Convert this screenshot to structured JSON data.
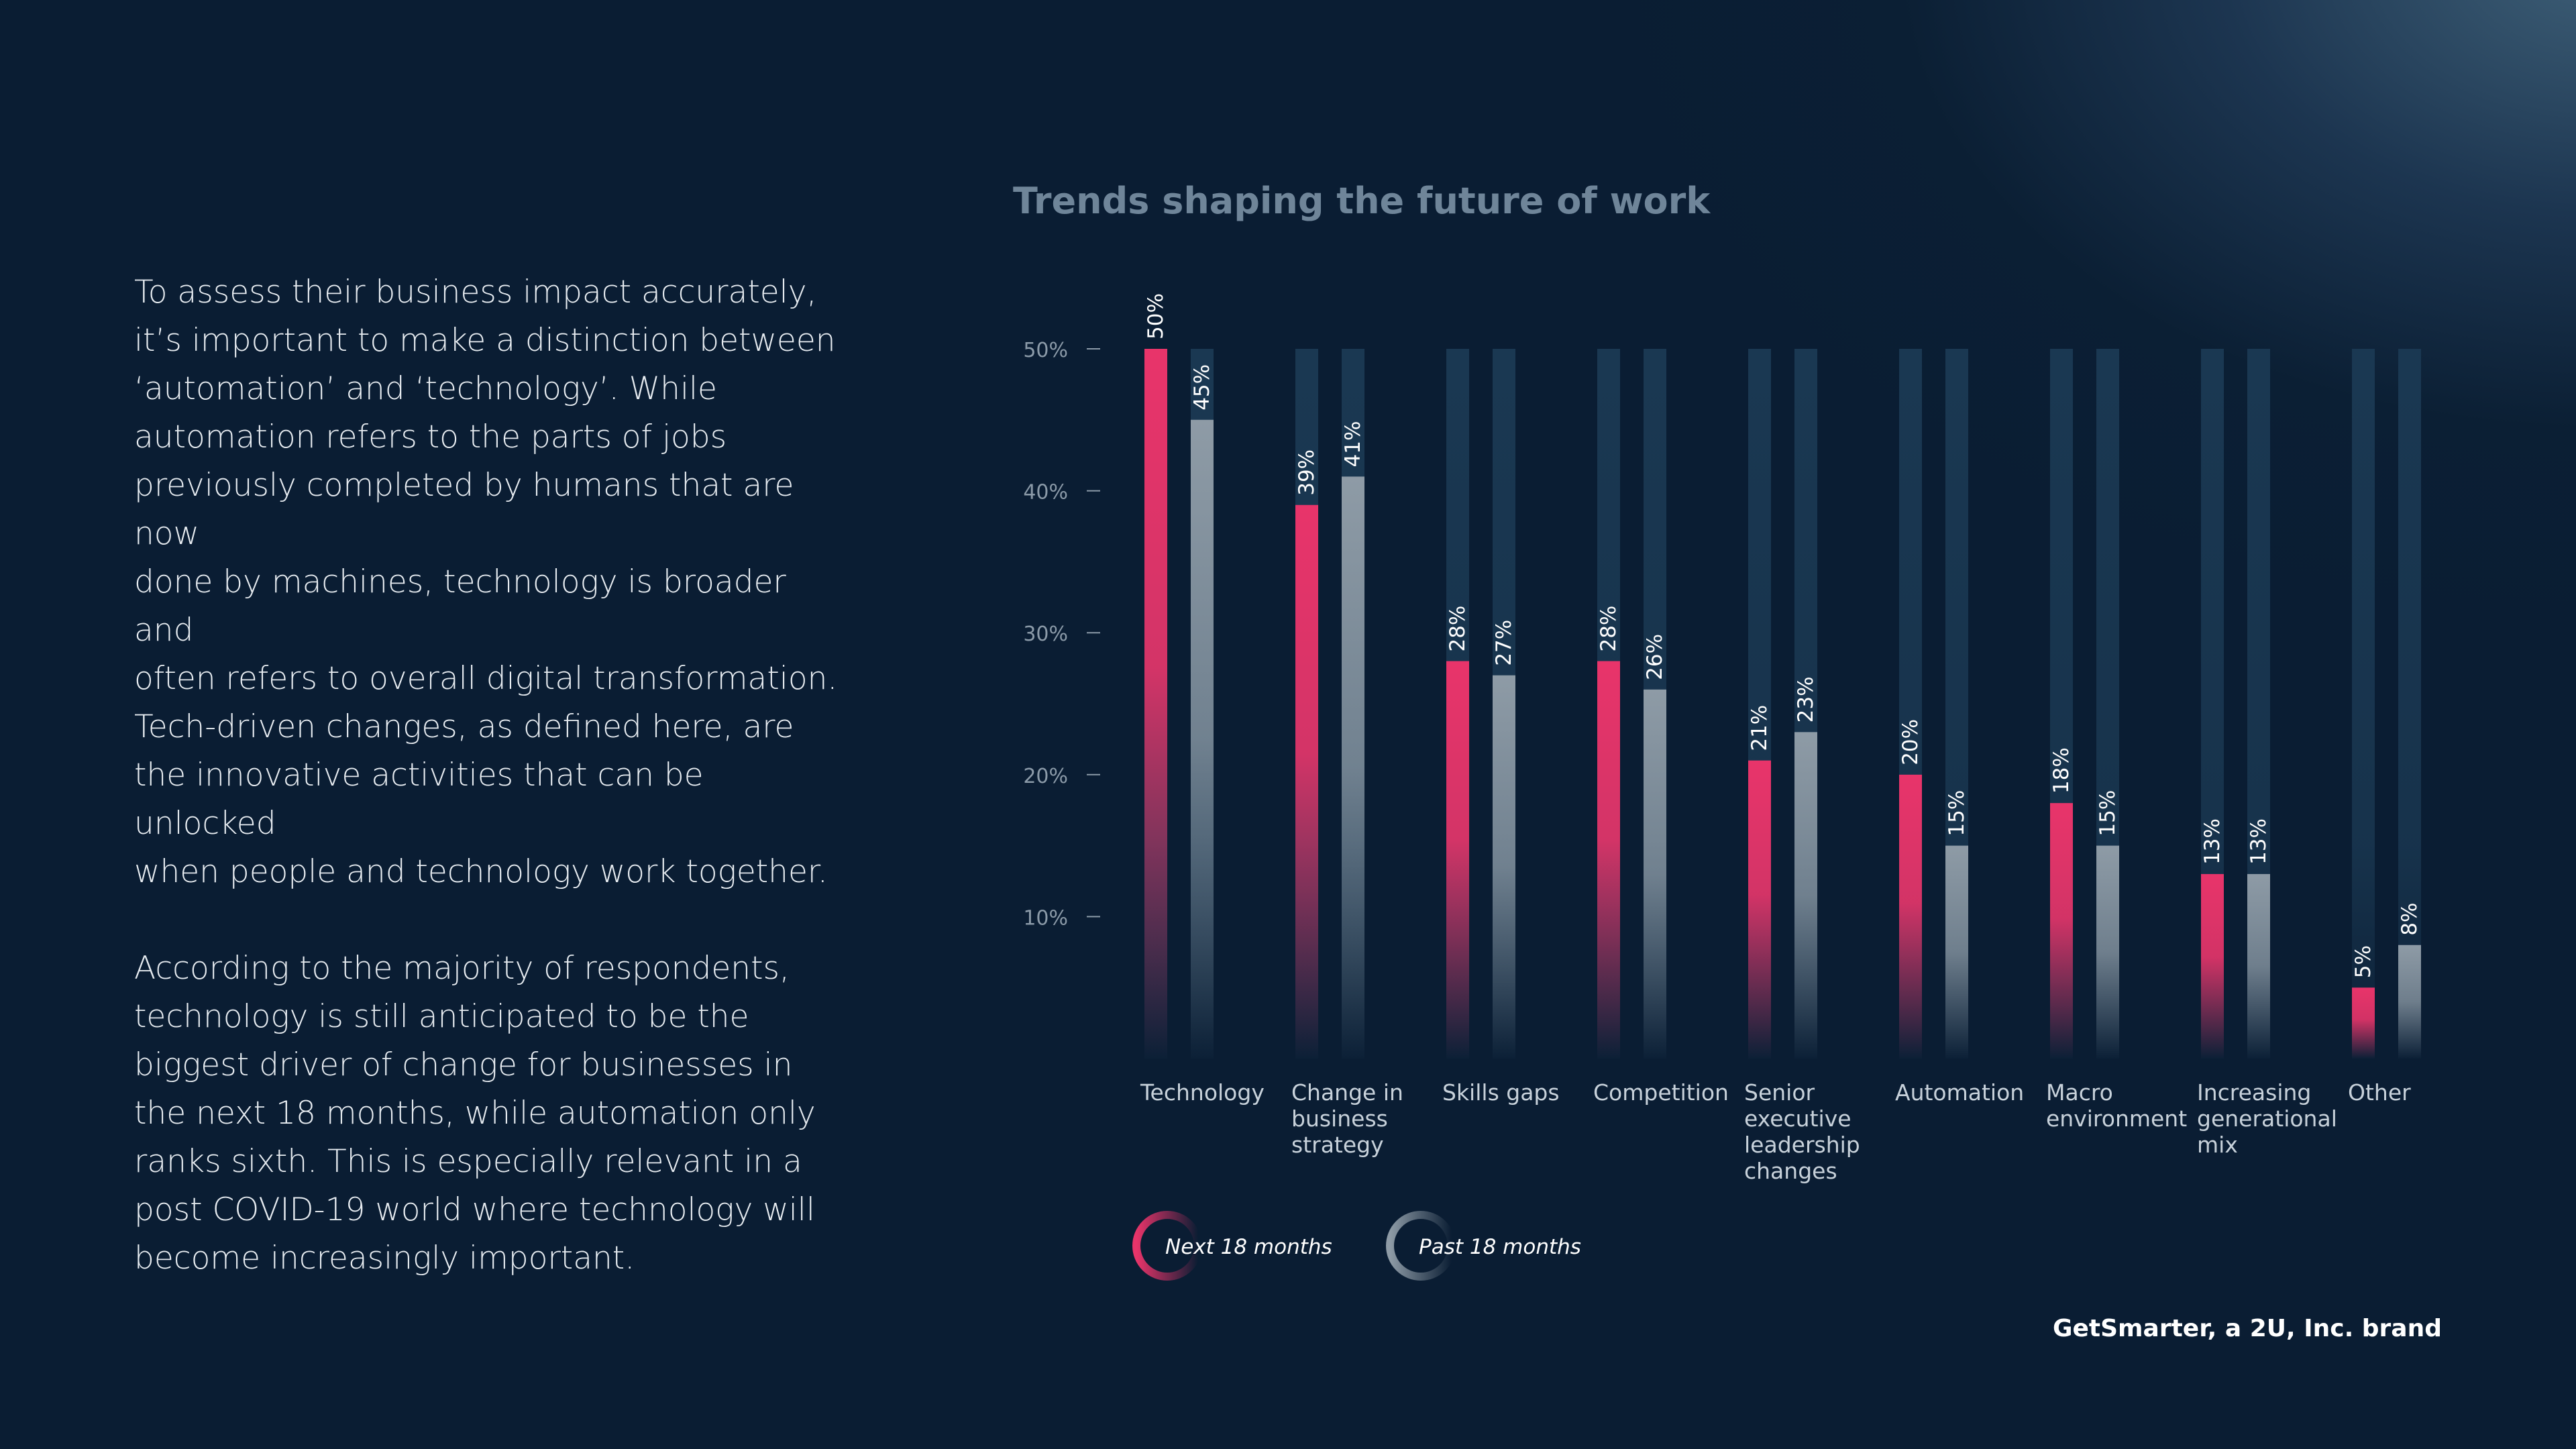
{
  "body_text": {
    "paragraph_1": "To assess their business impact accurately,\nit’s important to make a distinction between\n‘automation’ and ‘technology’. While\nautomation refers to the parts of jobs\npreviously completed by humans that are now\ndone by machines, technology is broader and\noften refers to overall digital transformation.\nTech-driven changes, as defined here, are\nthe innovative activities that can be unlocked\nwhen people and technology work together.",
    "paragraph_2": "According to the majority of respondents,\ntechnology is still anticipated to be the\nbiggest driver of change for businesses in\nthe next 18 months, while automation only\nranks sixth. This is especially relevant in a\npost COVID-19 world where technology will\nbecome increasingly important."
  },
  "brand": "GetSmarter, a 2U, Inc. brand",
  "colors": {
    "next": "#e8346a",
    "past": "#8e9ba6",
    "track": "#1a3852",
    "axis_text": "#8b9aa8",
    "label_text": "#c7d1da"
  },
  "chart_data": {
    "type": "bar",
    "title": "Trends shaping the future of work",
    "xlabel": "",
    "ylabel": "",
    "ylim": [
      0,
      50
    ],
    "grid": false,
    "y_ticks": [
      {
        "value": 50,
        "label": "50%"
      },
      {
        "value": 40,
        "label": "40%"
      },
      {
        "value": 30,
        "label": "30%"
      },
      {
        "value": 20,
        "label": "20%"
      },
      {
        "value": 10,
        "label": "10%"
      }
    ],
    "categories": [
      [
        "Technology"
      ],
      [
        "Change in",
        "business",
        "strategy"
      ],
      [
        "Skills gaps"
      ],
      [
        "Competition"
      ],
      [
        "Senior",
        "executive",
        "leadership",
        "changes"
      ],
      [
        "Automation"
      ],
      [
        "Macro",
        "environment"
      ],
      [
        "Increasing",
        "generational",
        "mix"
      ],
      [
        "Other"
      ]
    ],
    "series": [
      {
        "name": "Next 18 months",
        "key": "next",
        "values": [
          50,
          39,
          28,
          28,
          21,
          20,
          18,
          13,
          5
        ],
        "labels": [
          "50%",
          "39%",
          "28%",
          "28%",
          "21%",
          "20%",
          "18%",
          "13%",
          "5%"
        ]
      },
      {
        "name": "Past 18 months",
        "key": "past",
        "values": [
          45,
          41,
          27,
          26,
          23,
          15,
          15,
          13,
          8
        ],
        "labels": [
          "45%",
          "41%",
          "27%",
          "26%",
          "23%",
          "15%",
          "15%",
          "13%",
          "8%"
        ]
      }
    ],
    "legend_position": "bottom-left"
  }
}
